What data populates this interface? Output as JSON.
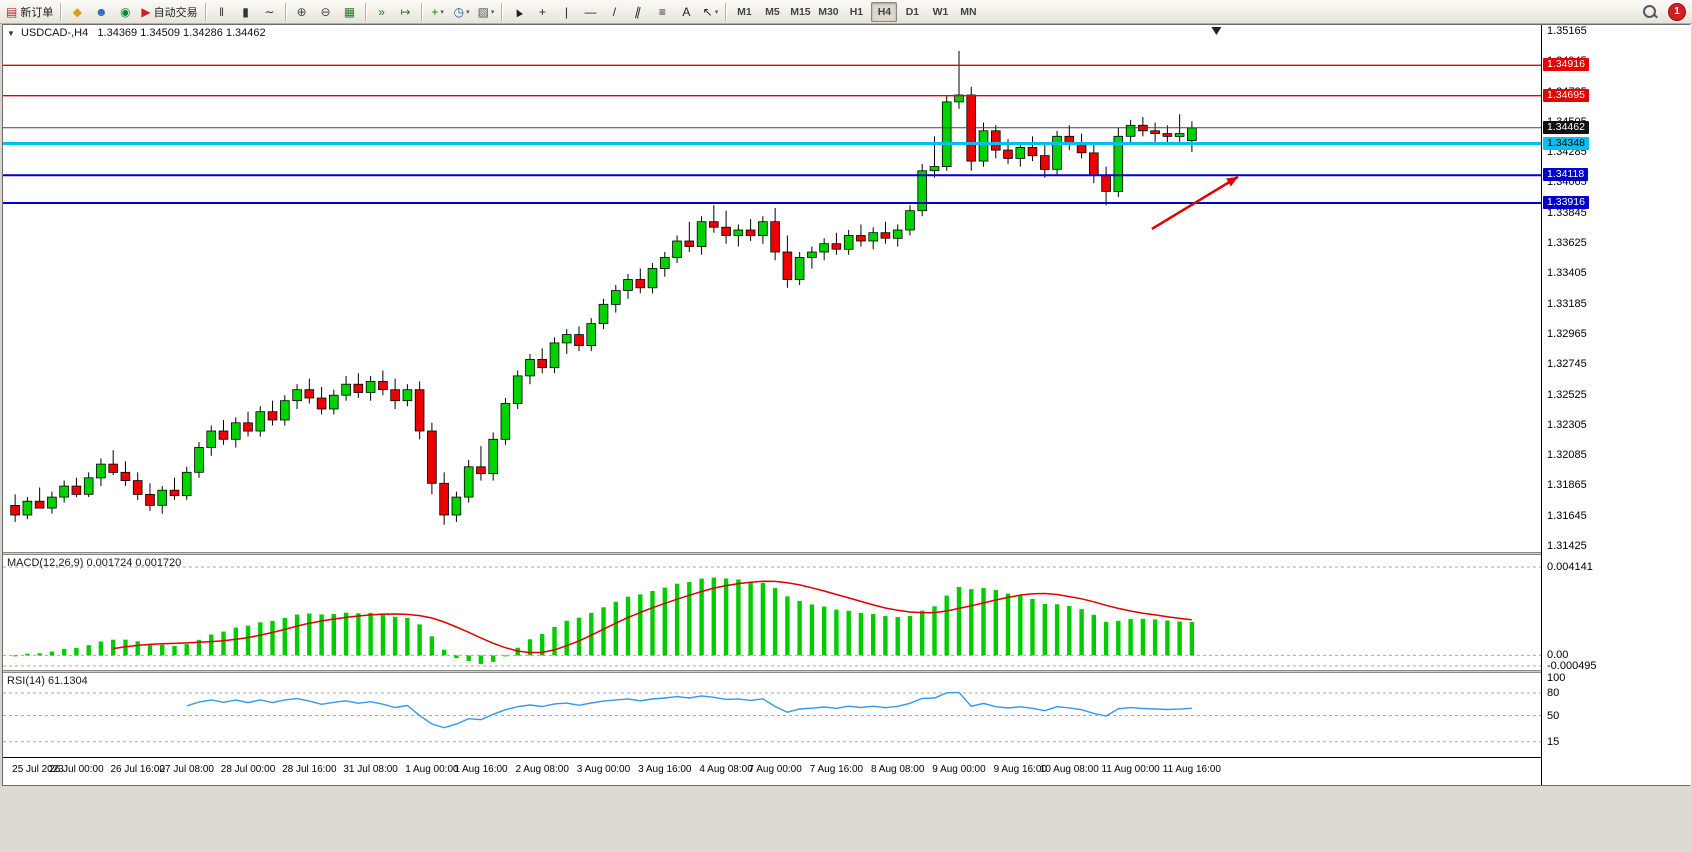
{
  "toolbar": {
    "groups": [
      {
        "items": [
          {
            "name": "new-order",
            "glyph": "▤",
            "color": "#b03030",
            "label": "新订单"
          }
        ]
      },
      {
        "items": [
          {
            "name": "data-folder",
            "glyph": "◆",
            "color": "#d4a017"
          },
          {
            "name": "community",
            "glyph": "☻",
            "color": "#2266bb"
          },
          {
            "name": "market",
            "glyph": "◉",
            "color": "#11873d"
          },
          {
            "name": "autotrading",
            "glyph": "▶",
            "color": "#cc2222",
            "label": "自动交易"
          }
        ]
      },
      {
        "items": [
          {
            "name": "bar-chart",
            "glyph": "‖",
            "color": "#333333"
          },
          {
            "name": "candle-chart",
            "glyph": "▮",
            "color": "#333333"
          },
          {
            "name": "line-chart",
            "glyph": "∼",
            "color": "#333333"
          }
        ]
      },
      {
        "items": [
          {
            "name": "zoom-in",
            "glyph": "⊕",
            "color": "#444444"
          },
          {
            "name": "zoom-out",
            "glyph": "⊖",
            "color": "#444444"
          },
          {
            "name": "tile-windows",
            "glyph": "▦",
            "color": "#2a7a2a"
          }
        ]
      },
      {
        "items": [
          {
            "name": "auto-scroll",
            "glyph": "»",
            "color": "#2a7a2a"
          },
          {
            "name": "chart-shift",
            "glyph": "↦",
            "color": "#2a7a2a"
          }
        ]
      },
      {
        "items": [
          {
            "name": "indicators",
            "glyph": "+",
            "color": "#0a8a0a",
            "dropdown": true
          },
          {
            "name": "periods",
            "glyph": "◷",
            "color": "#2255aa",
            "dropdown": true
          },
          {
            "name": "templates",
            "glyph": "▧",
            "color": "#555555",
            "dropdown": true
          }
        ]
      },
      {
        "items": [
          {
            "name": "cursor",
            "glyph": "▲",
            "color": "#222222",
            "cls": "rot-l"
          },
          {
            "name": "crosshair",
            "glyph": "+",
            "color": "#222222",
            "cls": "big"
          },
          {
            "name": "vertical-line",
            "glyph": "|",
            "color": "#222222"
          },
          {
            "name": "horizontal-line",
            "glyph": "—",
            "color": "#222222"
          },
          {
            "name": "trendline",
            "glyph": "/",
            "color": "#222222"
          },
          {
            "name": "channel",
            "glyph": "∥",
            "color": "#222222",
            "cls": "rot-r"
          },
          {
            "name": "fibonacci",
            "glyph": "≡",
            "color": "#222222"
          },
          {
            "name": "text",
            "glyph": "A",
            "color": "#222222"
          },
          {
            "name": "arrows",
            "glyph": "↖",
            "color": "#222222",
            "dropdown": true
          }
        ]
      }
    ],
    "timeframes": [
      "M1",
      "M5",
      "M15",
      "M30",
      "H1",
      "H4",
      "D1",
      "W1",
      "MN"
    ],
    "active_timeframe": "H4",
    "notification_count": "1"
  },
  "chart": {
    "collapse_glyph": "▼",
    "symbol_label": "USDCAD-,H4",
    "ohlc_text": "1.34369 1.34509 1.34286 1.34462",
    "macd_label": "MACD(12,26,9) 0.001724 0.001720",
    "rsi_label": "RSI(14) 61.1304"
  },
  "chart_data": {
    "type": "candlestick",
    "symbol": "USDCAD",
    "timeframe": "H4",
    "current_ohlc": {
      "open": 1.34369,
      "high": 1.34509,
      "low": 1.34286,
      "close": 1.34462
    },
    "bid": {
      "price": 1.34462,
      "color": "#444444",
      "badge_bg": "#111111",
      "badge_fg": "#ffffff"
    },
    "price_axis": {
      "min": 1.31425,
      "max": 1.35165,
      "step": 0.0022,
      "decimals": 5
    },
    "colors": {
      "up": "#00d200",
      "down": "#ee0000",
      "outline": "#000000",
      "macd_hist": "#00cc00",
      "macd_signal": "#dd0000",
      "rsi_line": "#3399ee"
    },
    "hlines": [
      {
        "price": 1.34916,
        "color": "#e60000",
        "width": 1.4,
        "badge_bg": "#e60000",
        "badge_fg": "#ffffff"
      },
      {
        "price": 1.34695,
        "color": "#e60000",
        "width": 1.4,
        "badge_bg": "#e60000",
        "badge_fg": "#ffffff"
      },
      {
        "price": 1.34348,
        "color": "#00c0f0",
        "width": 3,
        "badge_bg": "#00c0f0",
        "badge_fg": "#000000"
      },
      {
        "price": 1.34118,
        "color": "#0000cc",
        "width": 2,
        "badge_bg": "#0000cc",
        "badge_fg": "#ffffff"
      },
      {
        "price": 1.33916,
        "color": "#0000cc",
        "width": 2,
        "badge_bg": "#0000cc",
        "badge_fg": "#ffffff"
      }
    ],
    "annotation_arrow": {
      "x1": 0.747,
      "y1": 0.387,
      "x2": 0.803,
      "y2": 0.288,
      "color": "#dd0000"
    },
    "x_labels": [
      "25 Jul 2023",
      "26 Jul 00:00",
      "26 Jul 16:00",
      "27 Jul 08:00",
      "28 Jul 00:00",
      "28 Jul 16:00",
      "31 Jul 08:00",
      "1 Aug 00:00",
      "1 Aug 16:00",
      "2 Aug 08:00",
      "3 Aug 00:00",
      "3 Aug 16:00",
      "4 Aug 08:00",
      "7 Aug 00:00",
      "7 Aug 16:00",
      "8 Aug 08:00",
      "9 Aug 00:00",
      "9 Aug 16:00",
      "10 Aug 08:00",
      "11 Aug 00:00",
      "11 Aug 16:00"
    ],
    "macd": {
      "name": "MACD",
      "fast": 12,
      "slow": 26,
      "signal": 9,
      "value_main": 0.001724,
      "value_signal": 0.00172,
      "scale_labels": [
        "0.004141",
        "0.00",
        "-0.000495"
      ],
      "min": -0.000495,
      "max": 0.004141
    },
    "rsi": {
      "name": "RSI",
      "period": 14,
      "value": 61.1304,
      "scale_labels": [
        "100",
        "80",
        "50",
        "15"
      ],
      "levels": [
        80,
        50,
        15
      ],
      "min": 0,
      "max": 100
    },
    "candles": [
      [
        1.3172,
        1.318,
        1.316,
        1.3165
      ],
      [
        1.3165,
        1.3178,
        1.3162,
        1.3175
      ],
      [
        1.3175,
        1.3185,
        1.317,
        1.317
      ],
      [
        1.317,
        1.3182,
        1.3166,
        1.3178
      ],
      [
        1.3178,
        1.319,
        1.3174,
        1.3186
      ],
      [
        1.3186,
        1.3192,
        1.3178,
        1.318
      ],
      [
        1.318,
        1.3196,
        1.3178,
        1.3192
      ],
      [
        1.3192,
        1.3206,
        1.3186,
        1.3202
      ],
      [
        1.3202,
        1.3212,
        1.3194,
        1.3196
      ],
      [
        1.3196,
        1.3204,
        1.3186,
        1.319
      ],
      [
        1.319,
        1.3196,
        1.3176,
        1.318
      ],
      [
        1.318,
        1.3188,
        1.3168,
        1.3172
      ],
      [
        1.3172,
        1.3186,
        1.3166,
        1.3183
      ],
      [
        1.3183,
        1.3192,
        1.3176,
        1.3179
      ],
      [
        1.3179,
        1.32,
        1.3176,
        1.3196
      ],
      [
        1.3196,
        1.3218,
        1.3192,
        1.3214
      ],
      [
        1.3214,
        1.323,
        1.3208,
        1.3226
      ],
      [
        1.3226,
        1.3234,
        1.3216,
        1.322
      ],
      [
        1.322,
        1.3236,
        1.3214,
        1.3232
      ],
      [
        1.3232,
        1.324,
        1.3222,
        1.3226
      ],
      [
        1.3226,
        1.3244,
        1.3222,
        1.324
      ],
      [
        1.324,
        1.3248,
        1.323,
        1.3234
      ],
      [
        1.3234,
        1.3252,
        1.323,
        1.3248
      ],
      [
        1.3248,
        1.326,
        1.3242,
        1.3256
      ],
      [
        1.3256,
        1.3264,
        1.3246,
        1.325
      ],
      [
        1.325,
        1.3258,
        1.3238,
        1.3242
      ],
      [
        1.3242,
        1.3256,
        1.3238,
        1.3252
      ],
      [
        1.3252,
        1.3266,
        1.3248,
        1.326
      ],
      [
        1.326,
        1.3268,
        1.325,
        1.3254
      ],
      [
        1.3254,
        1.3266,
        1.3248,
        1.3262
      ],
      [
        1.3262,
        1.327,
        1.3252,
        1.3256
      ],
      [
        1.3256,
        1.3264,
        1.3242,
        1.3248
      ],
      [
        1.3248,
        1.326,
        1.3244,
        1.3256
      ],
      [
        1.3256,
        1.3262,
        1.322,
        1.3226
      ],
      [
        1.3226,
        1.3232,
        1.318,
        1.3188
      ],
      [
        1.3188,
        1.3196,
        1.3158,
        1.3165
      ],
      [
        1.3165,
        1.3182,
        1.316,
        1.3178
      ],
      [
        1.3178,
        1.3205,
        1.3174,
        1.32
      ],
      [
        1.32,
        1.3215,
        1.319,
        1.3195
      ],
      [
        1.3195,
        1.3225,
        1.319,
        1.322
      ],
      [
        1.322,
        1.325,
        1.3216,
        1.3246
      ],
      [
        1.3246,
        1.327,
        1.3242,
        1.3266
      ],
      [
        1.3266,
        1.3282,
        1.326,
        1.3278
      ],
      [
        1.3278,
        1.3286,
        1.3268,
        1.3272
      ],
      [
        1.3272,
        1.3294,
        1.3268,
        1.329
      ],
      [
        1.329,
        1.33,
        1.3282,
        1.3296
      ],
      [
        1.3296,
        1.3302,
        1.3284,
        1.3288
      ],
      [
        1.3288,
        1.3308,
        1.3284,
        1.3304
      ],
      [
        1.3304,
        1.3322,
        1.33,
        1.3318
      ],
      [
        1.3318,
        1.3332,
        1.3312,
        1.3328
      ],
      [
        1.3328,
        1.334,
        1.3322,
        1.3336
      ],
      [
        1.3336,
        1.3344,
        1.3326,
        1.333
      ],
      [
        1.333,
        1.3348,
        1.3326,
        1.3344
      ],
      [
        1.3344,
        1.3356,
        1.3338,
        1.3352
      ],
      [
        1.3352,
        1.3368,
        1.3348,
        1.3364
      ],
      [
        1.3364,
        1.3378,
        1.3356,
        1.336
      ],
      [
        1.336,
        1.3382,
        1.3354,
        1.3378
      ],
      [
        1.3378,
        1.339,
        1.337,
        1.3374
      ],
      [
        1.3374,
        1.3386,
        1.3362,
        1.3368
      ],
      [
        1.3368,
        1.3376,
        1.336,
        1.3372
      ],
      [
        1.3372,
        1.338,
        1.3364,
        1.3368
      ],
      [
        1.3368,
        1.3382,
        1.3362,
        1.3378
      ],
      [
        1.3378,
        1.3388,
        1.335,
        1.3356
      ],
      [
        1.3356,
        1.3368,
        1.333,
        1.3336
      ],
      [
        1.3336,
        1.3356,
        1.3332,
        1.3352
      ],
      [
        1.3352,
        1.336,
        1.3344,
        1.3356
      ],
      [
        1.3356,
        1.3366,
        1.335,
        1.3362
      ],
      [
        1.3362,
        1.337,
        1.3354,
        1.3358
      ],
      [
        1.3358,
        1.3372,
        1.3354,
        1.3368
      ],
      [
        1.3368,
        1.3376,
        1.336,
        1.3364
      ],
      [
        1.3364,
        1.3374,
        1.3358,
        1.337
      ],
      [
        1.337,
        1.3378,
        1.3362,
        1.3366
      ],
      [
        1.3366,
        1.3376,
        1.336,
        1.3372
      ],
      [
        1.3372,
        1.339,
        1.3368,
        1.3386
      ],
      [
        1.3386,
        1.342,
        1.3382,
        1.3415
      ],
      [
        1.3415,
        1.344,
        1.341,
        1.3418
      ],
      [
        1.3418,
        1.347,
        1.3415,
        1.3465
      ],
      [
        1.3465,
        1.3502,
        1.346,
        1.347
      ],
      [
        1.347,
        1.3476,
        1.3415,
        1.3422
      ],
      [
        1.3422,
        1.345,
        1.3418,
        1.3444
      ],
      [
        1.3444,
        1.3448,
        1.3424,
        1.343
      ],
      [
        1.343,
        1.3438,
        1.342,
        1.3424
      ],
      [
        1.3424,
        1.3436,
        1.3418,
        1.3432
      ],
      [
        1.3432,
        1.344,
        1.3422,
        1.3426
      ],
      [
        1.3426,
        1.3434,
        1.341,
        1.3416
      ],
      [
        1.3416,
        1.3444,
        1.3412,
        1.344
      ],
      [
        1.344,
        1.3448,
        1.343,
        1.3435
      ],
      [
        1.3435,
        1.3442,
        1.3424,
        1.3428
      ],
      [
        1.3428,
        1.3434,
        1.3406,
        1.3412
      ],
      [
        1.3412,
        1.3418,
        1.339,
        1.34
      ],
      [
        1.34,
        1.3446,
        1.3396,
        1.344
      ],
      [
        1.344,
        1.3452,
        1.3434,
        1.3448
      ],
      [
        1.3448,
        1.3454,
        1.344,
        1.3444
      ],
      [
        1.3444,
        1.345,
        1.3436,
        1.3442
      ],
      [
        1.3442,
        1.3448,
        1.3434,
        1.344
      ],
      [
        1.344,
        1.3456,
        1.3436,
        1.3442
      ],
      [
        1.34369,
        1.34509,
        1.34286,
        1.34462
      ]
    ]
  }
}
